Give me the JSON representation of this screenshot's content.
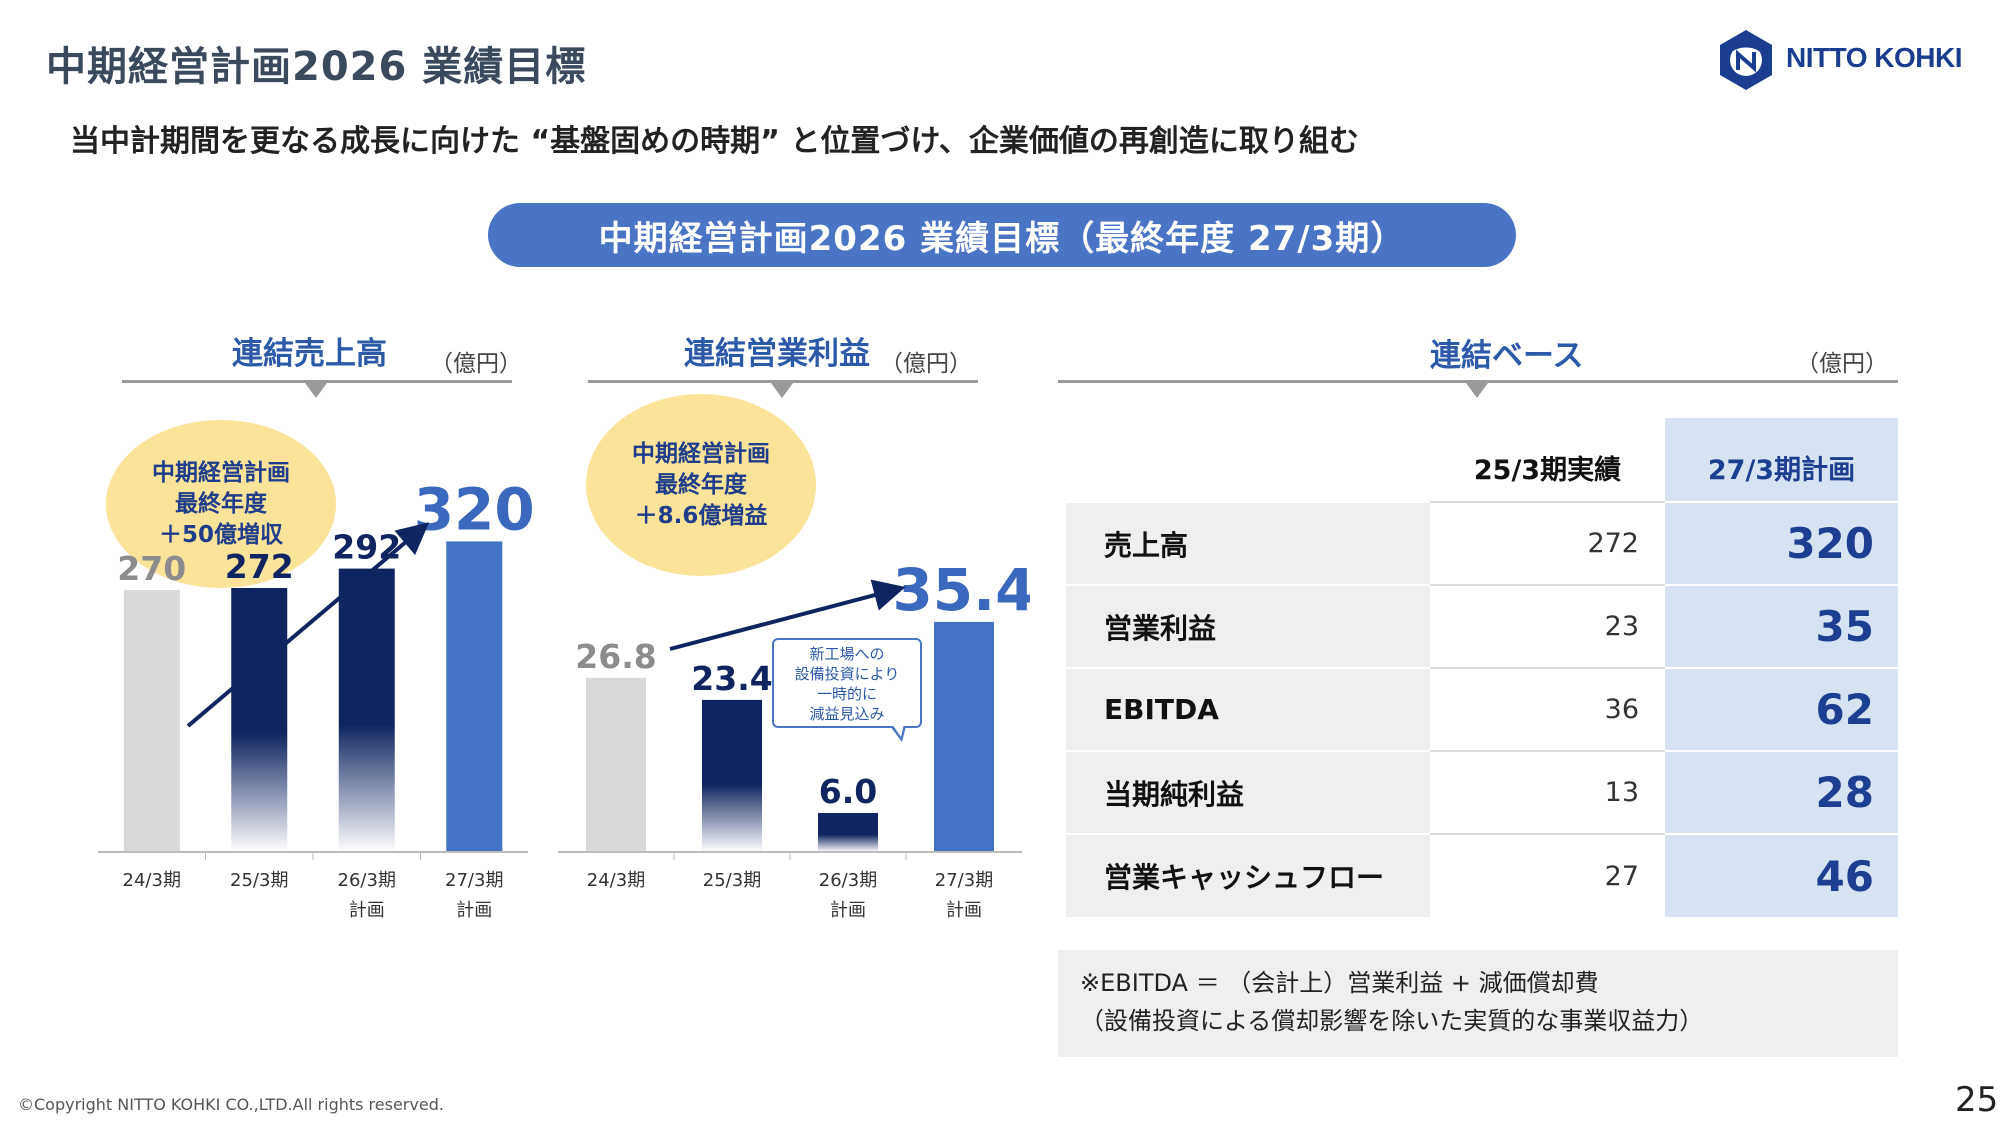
{
  "header": {
    "title": "中期経営計画2026 業績目標",
    "logo_text": "NITTO KOHKI",
    "subtitle": "当中計期間を更なる成長に向けた “基盤固めの時期” と位置づけ、企業価値の再創造に取り組む",
    "banner": "中期経営計画2026 業績目標（最終年度 27/3期）"
  },
  "colors": {
    "actual": "#d9d9d9",
    "navy": "#0f2460",
    "plan": "#4472c4",
    "accent_text": "#2c5aa8",
    "circle": "#fbe49a"
  },
  "sales_panel": {
    "title": "連結売上高",
    "unit": "（億円）",
    "circle_lines": [
      "中期経営計画",
      "最終年度",
      "＋50億増収"
    ]
  },
  "profit_panel": {
    "title": "連結営業利益",
    "unit": "（億円）",
    "circle_lines": [
      "中期経営計画",
      "最終年度",
      "＋8.6億増益"
    ],
    "callout_lines": [
      "新工場への",
      "設備投資により",
      "一時的に",
      "減益見込み"
    ]
  },
  "chart_data": [
    {
      "type": "bar",
      "title": "連結売上高",
      "ylabel": "（億円）",
      "categories": [
        [
          "24/3期"
        ],
        [
          "25/3期"
        ],
        [
          "26/3期",
          "計画"
        ],
        [
          "27/3期",
          "計画"
        ]
      ],
      "values": [
        270,
        272,
        292,
        320
      ],
      "labels": [
        "270",
        "272",
        "292",
        "320"
      ],
      "styles": [
        "actual",
        "navy",
        "navy",
        "plan"
      ],
      "ylim": [
        0,
        340
      ]
    },
    {
      "type": "bar",
      "title": "連結営業利益",
      "ylabel": "（億円）",
      "categories": [
        [
          "24/3期"
        ],
        [
          "25/3期"
        ],
        [
          "26/3期",
          "計画"
        ],
        [
          "27/3期",
          "計画"
        ]
      ],
      "values": [
        26.8,
        23.4,
        6.0,
        35.4
      ],
      "labels": [
        "26.8",
        "23.4",
        "6.0",
        "35.4"
      ],
      "styles": [
        "actual",
        "navy",
        "navy",
        "plan"
      ],
      "ylim": [
        0,
        40
      ]
    }
  ],
  "kpi": {
    "title": "連結ベース",
    "unit": "（億円）",
    "col_actual": "25/3期実績",
    "col_plan": "27/3期計画",
    "rows": [
      {
        "name": "売上高",
        "actual": "272",
        "plan": "320"
      },
      {
        "name": "営業利益",
        "actual": "23",
        "plan": "35"
      },
      {
        "name": "EBITDA",
        "actual": "36",
        "plan": "62"
      },
      {
        "name": "当期純利益",
        "actual": "13",
        "plan": "28"
      },
      {
        "name": "営業キャッシュフロー",
        "actual": "27",
        "plan": "46"
      }
    ]
  },
  "note": {
    "line1": "※EBITDA ＝ （会計上）営業利益 + 減価償却費",
    "line2": "（設備投資による償却影響を除いた実質的な事業収益力）"
  },
  "footer": {
    "copyright": "©Copyright NITTO KOHKI CO.,LTD.All rights reserved.",
    "page": "25"
  }
}
